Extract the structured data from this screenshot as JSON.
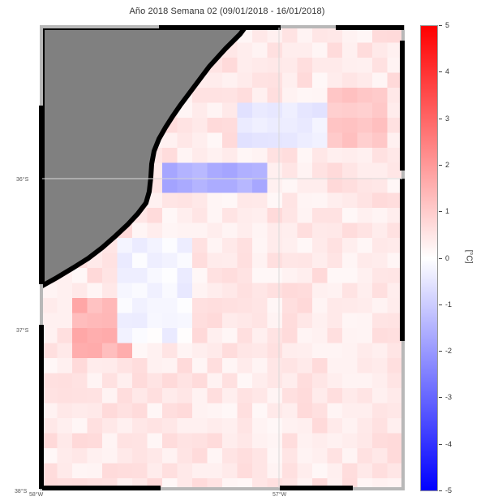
{
  "title": "Año 2018 Semana 02 (09/01/2018 - 16/01/2018)",
  "axes": {
    "lat_labels": [
      {
        "text": "36°S",
        "value": -36
      },
      {
        "text": "37°S",
        "value": -37
      },
      {
        "text": "38°S",
        "value": -38
      }
    ],
    "lon_labels": [
      {
        "text": "58°W",
        "value": -58
      },
      {
        "text": "57°W",
        "value": -57
      }
    ]
  },
  "colorbar": {
    "label": "[°C]",
    "min": -5,
    "max": 5,
    "ticks": [
      "5",
      "4",
      "3",
      "2",
      "1",
      "0",
      "-1",
      "-2",
      "-3",
      "-4",
      "-5"
    ],
    "colors": {
      "high": "#ff0000",
      "mid": "#ffffff",
      "low": "#0000ff"
    }
  },
  "colors": {
    "land": "#808080",
    "coast_mask": "#000000",
    "frame": "#b0b0b0"
  },
  "anomaly_pattern": {
    "background": 0.45,
    "features": [
      {
        "region": "coastal band near 37°S",
        "anomaly": -1.8
      },
      {
        "region": "offshore northeast",
        "anomaly": -0.6
      },
      {
        "region": "patch southwest",
        "anomaly": 1.6
      }
    ]
  }
}
